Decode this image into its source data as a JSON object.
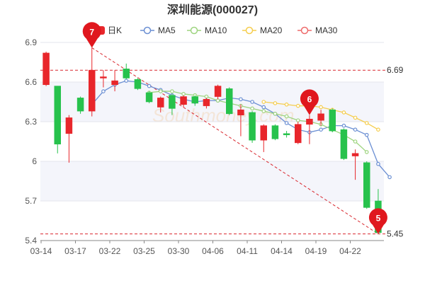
{
  "chart_data": {
    "type": "candlestick",
    "title": "深圳能源(000027)",
    "ylim": [
      5.4,
      6.9
    ],
    "yticks": [
      5.4,
      5.7,
      6,
      6.3,
      6.6,
      6.9
    ],
    "ytick_labels": [
      "5.4",
      "5.7",
      "6",
      "6.3",
      "6.6",
      "6.9"
    ],
    "grid": true,
    "legend_position": "top",
    "legend": [
      {
        "name": "日K",
        "color": "#e8262b",
        "kind": "candle"
      },
      {
        "name": "MA5",
        "color": "#6b8fd3",
        "kind": "line"
      },
      {
        "name": "MA10",
        "color": "#9ed47f",
        "kind": "line"
      },
      {
        "name": "MA20",
        "color": "#f5cd4d",
        "kind": "line"
      },
      {
        "name": "MA30",
        "color": "#ee6b6b",
        "kind": "line"
      }
    ],
    "xtick_labels": [
      {
        "index": 0,
        "label": "03-14"
      },
      {
        "index": 3,
        "label": "03-17"
      },
      {
        "index": 6,
        "label": "03-22"
      },
      {
        "index": 9,
        "label": "03-25"
      },
      {
        "index": 12,
        "label": "03-30"
      },
      {
        "index": 15,
        "label": "04-06"
      },
      {
        "index": 18,
        "label": "04-11"
      },
      {
        "index": 21,
        "label": "04-14"
      },
      {
        "index": 24,
        "label": "04-19"
      },
      {
        "index": 27,
        "label": "04-22"
      }
    ],
    "candles": [
      {
        "o": 6.58,
        "c": 6.82,
        "h": 6.83,
        "l": 6.57
      },
      {
        "o": 6.57,
        "c": 6.13,
        "h": 6.57,
        "l": 6.06
      },
      {
        "o": 6.21,
        "c": 6.33,
        "h": 6.35,
        "l": 5.99
      },
      {
        "o": 6.48,
        "c": 6.38,
        "h": 6.49,
        "l": 6.36
      },
      {
        "o": 6.38,
        "c": 6.69,
        "h": 6.86,
        "l": 6.34
      },
      {
        "o": 6.63,
        "c": 6.64,
        "h": 6.69,
        "l": 6.56
      },
      {
        "o": 6.58,
        "c": 6.61,
        "h": 6.69,
        "l": 6.53
      },
      {
        "o": 6.7,
        "c": 6.63,
        "h": 6.74,
        "l": 6.62
      },
      {
        "o": 6.62,
        "c": 6.55,
        "h": 6.63,
        "l": 6.54
      },
      {
        "o": 6.52,
        "c": 6.45,
        "h": 6.53,
        "l": 6.44
      },
      {
        "o": 6.41,
        "c": 6.48,
        "h": 6.49,
        "l": 6.37
      },
      {
        "o": 6.5,
        "c": 6.4,
        "h": 6.51,
        "l": 6.35
      },
      {
        "o": 6.43,
        "c": 6.49,
        "h": 6.5,
        "l": 6.41
      },
      {
        "o": 6.49,
        "c": 6.44,
        "h": 6.5,
        "l": 6.42
      },
      {
        "o": 6.42,
        "c": 6.47,
        "h": 6.48,
        "l": 6.4
      },
      {
        "o": 6.49,
        "c": 6.57,
        "h": 6.58,
        "l": 6.47
      },
      {
        "o": 6.55,
        "c": 6.36,
        "h": 6.56,
        "l": 6.35
      },
      {
        "o": 6.35,
        "c": 6.39,
        "h": 6.43,
        "l": 6.19
      },
      {
        "o": 6.37,
        "c": 6.16,
        "h": 6.38,
        "l": 6.14
      },
      {
        "o": 6.16,
        "c": 6.27,
        "h": 6.28,
        "l": 6.07
      },
      {
        "o": 6.27,
        "c": 6.17,
        "h": 6.28,
        "l": 6.16
      },
      {
        "o": 6.21,
        "c": 6.2,
        "h": 6.23,
        "l": 6.18
      },
      {
        "o": 6.14,
        "c": 6.28,
        "h": 6.3,
        "l": 6.13
      },
      {
        "o": 6.28,
        "c": 6.32,
        "h": 6.35,
        "l": 6.13
      },
      {
        "o": 6.31,
        "c": 6.36,
        "h": 6.39,
        "l": 6.27
      },
      {
        "o": 6.39,
        "c": 6.23,
        "h": 6.4,
        "l": 6.22
      },
      {
        "o": 6.24,
        "c": 6.02,
        "h": 6.25,
        "l": 6.01
      },
      {
        "o": 6.04,
        "c": 6.06,
        "h": 6.09,
        "l": 5.86
      },
      {
        "o": 5.99,
        "c": 5.65,
        "h": 6.0,
        "l": 5.64
      },
      {
        "o": 5.7,
        "c": 5.46,
        "h": 5.79,
        "l": 5.45
      }
    ],
    "ma": [
      {
        "name": "MA5",
        "color": "#6b8fd3",
        "start": 5,
        "values": [
          6.43,
          6.53,
          6.58,
          6.61,
          6.6,
          6.57,
          6.54,
          6.5,
          6.47,
          6.45,
          6.46,
          6.46,
          6.48,
          6.47,
          6.45,
          6.41,
          6.36,
          6.29,
          6.24,
          6.22,
          6.24,
          6.27,
          6.27,
          6.24,
          6.2,
          5.98,
          5.88
        ]
      },
      {
        "name": "MA10",
        "color": "#9ed47f",
        "start": 10,
        "values": [
          6.52,
          6.53,
          6.53,
          6.51,
          6.5,
          6.49,
          6.46,
          6.44,
          6.42,
          6.4,
          6.38,
          6.36,
          6.34,
          6.31,
          6.3,
          6.28,
          6.24,
          6.2,
          6.15,
          6.07
        ]
      },
      {
        "name": "MA20",
        "color": "#f5cd4d",
        "start": 20,
        "values": [
          6.45,
          6.44,
          6.43,
          6.42,
          6.42,
          6.41,
          6.39,
          6.37,
          6.33,
          6.29,
          6.24
        ]
      },
      {
        "name": "MA30",
        "color": "#ee6b6b",
        "start": 30,
        "values": []
      }
    ],
    "reference_lines": [
      {
        "value": 6.69,
        "label": "6.69",
        "color": "#d9272e"
      },
      {
        "value": 5.45,
        "label": "5.45",
        "color": "#d9272e"
      }
    ],
    "trend_line": {
      "from": {
        "index": 4,
        "value": 6.86
      },
      "to": {
        "index": 29,
        "value": 5.45
      },
      "color": "#d9272e"
    },
    "markers": [
      {
        "index": 4,
        "value": 6.86,
        "label": "7",
        "color": "#e0171e"
      },
      {
        "index": 23,
        "value": 6.35,
        "label": "6",
        "color": "#e0171e"
      },
      {
        "index": 29,
        "value": 5.45,
        "label": "5",
        "color": "#e0171e"
      }
    ],
    "up_color": "#e8262b",
    "down_color": "#27c24c",
    "watermark": "Southmoney.com"
  }
}
